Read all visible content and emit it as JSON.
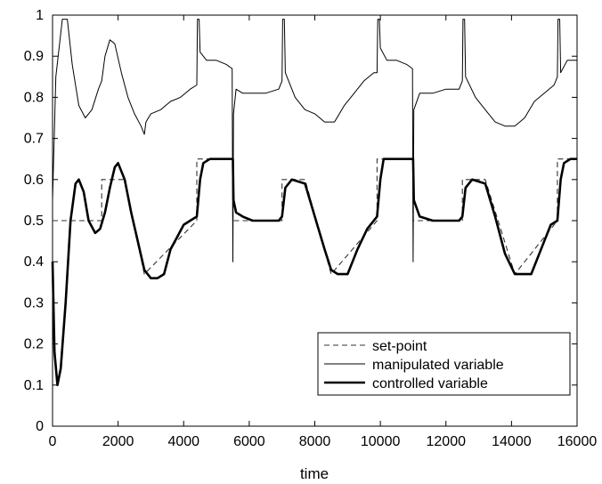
{
  "chart_data": {
    "type": "line",
    "title": "",
    "xlabel": "time",
    "ylabel": "",
    "xlim": [
      0,
      16000
    ],
    "ylim": [
      0,
      1
    ],
    "xticks": [
      0,
      2000,
      4000,
      6000,
      8000,
      10000,
      12000,
      14000,
      16000
    ],
    "yticks": [
      0,
      0.1,
      0.2,
      0.3,
      0.4,
      0.5,
      0.6,
      0.7,
      0.8,
      0.9,
      1
    ],
    "grid": false,
    "legend_position": "lower-right",
    "series": [
      {
        "name": "set-point",
        "style": "dashed",
        "x": [
          0,
          1500,
          1500,
          2200,
          2800,
          4400,
          4400,
          5500,
          5500,
          7000,
          7000,
          7700,
          8500,
          9900,
          9900,
          11000,
          11000,
          12500,
          12500,
          13200,
          14100,
          15400,
          15400,
          16000
        ],
        "y": [
          0.5,
          0.5,
          0.6,
          0.6,
          0.37,
          0.5,
          0.65,
          0.65,
          0.5,
          0.5,
          0.6,
          0.6,
          0.37,
          0.5,
          0.65,
          0.65,
          0.5,
          0.5,
          0.6,
          0.6,
          0.37,
          0.5,
          0.65,
          0.65
        ]
      },
      {
        "name": "manipulated variable",
        "style": "thin",
        "x": [
          0,
          100,
          300,
          450,
          600,
          800,
          1000,
          1200,
          1400,
          1500,
          1600,
          1750,
          1900,
          2100,
          2300,
          2500,
          2700,
          2800,
          2850,
          3000,
          3300,
          3600,
          3900,
          4200,
          4400,
          4420,
          4470,
          4500,
          4700,
          5000,
          5300,
          5480,
          5500,
          5520,
          5600,
          5800,
          6100,
          6500,
          6900,
          7000,
          7020,
          7070,
          7100,
          7400,
          7700,
          8000,
          8300,
          8600,
          8900,
          9200,
          9500,
          9800,
          9900,
          9920,
          9970,
          10000,
          10200,
          10500,
          10800,
          10980,
          11000,
          11020,
          11200,
          11600,
          12000,
          12400,
          12500,
          12520,
          12570,
          12600,
          12900,
          13200,
          13500,
          13800,
          14100,
          14400,
          14700,
          15000,
          15300,
          15400,
          15420,
          15470,
          15500,
          15700,
          16000
        ],
        "y": [
          0.55,
          0.85,
          0.99,
          0.99,
          0.88,
          0.78,
          0.75,
          0.77,
          0.82,
          0.84,
          0.9,
          0.94,
          0.93,
          0.86,
          0.8,
          0.76,
          0.73,
          0.71,
          0.74,
          0.76,
          0.77,
          0.79,
          0.8,
          0.82,
          0.83,
          0.99,
          0.99,
          0.91,
          0.89,
          0.89,
          0.88,
          0.87,
          0.4,
          0.76,
          0.82,
          0.81,
          0.81,
          0.81,
          0.82,
          0.84,
          0.99,
          0.99,
          0.86,
          0.8,
          0.77,
          0.76,
          0.74,
          0.74,
          0.78,
          0.81,
          0.84,
          0.86,
          0.86,
          0.99,
          0.99,
          0.92,
          0.89,
          0.89,
          0.88,
          0.87,
          0.4,
          0.77,
          0.81,
          0.81,
          0.82,
          0.82,
          0.84,
          0.99,
          0.99,
          0.85,
          0.8,
          0.77,
          0.74,
          0.73,
          0.73,
          0.75,
          0.79,
          0.81,
          0.83,
          0.85,
          0.99,
          0.99,
          0.86,
          0.89,
          0.89
        ]
      },
      {
        "name": "controlled variable",
        "style": "thick",
        "x": [
          0,
          60,
          150,
          250,
          400,
          550,
          700,
          800,
          950,
          1100,
          1300,
          1450,
          1600,
          1750,
          1900,
          2000,
          2200,
          2400,
          2600,
          2800,
          3000,
          3200,
          3400,
          3600,
          3800,
          4000,
          4200,
          4400,
          4500,
          4600,
          4800,
          5000,
          5300,
          5500,
          5520,
          5600,
          5800,
          6100,
          6500,
          6900,
          7000,
          7100,
          7300,
          7700,
          8000,
          8300,
          8500,
          8700,
          9000,
          9300,
          9600,
          9900,
          10000,
          10100,
          10300,
          10700,
          11000,
          11020,
          11200,
          11600,
          12000,
          12400,
          12500,
          12600,
          12800,
          13200,
          13500,
          13800,
          14100,
          14300,
          14600,
          14900,
          15200,
          15400,
          15500,
          15600,
          15800,
          16000
        ],
        "y": [
          0.4,
          0.18,
          0.1,
          0.14,
          0.3,
          0.5,
          0.59,
          0.6,
          0.57,
          0.5,
          0.47,
          0.48,
          0.52,
          0.58,
          0.63,
          0.64,
          0.6,
          0.52,
          0.45,
          0.38,
          0.36,
          0.36,
          0.37,
          0.43,
          0.46,
          0.49,
          0.5,
          0.51,
          0.6,
          0.64,
          0.65,
          0.65,
          0.65,
          0.65,
          0.55,
          0.52,
          0.51,
          0.5,
          0.5,
          0.5,
          0.51,
          0.58,
          0.6,
          0.59,
          0.51,
          0.43,
          0.38,
          0.37,
          0.37,
          0.43,
          0.48,
          0.51,
          0.6,
          0.65,
          0.65,
          0.65,
          0.65,
          0.55,
          0.51,
          0.5,
          0.5,
          0.5,
          0.51,
          0.58,
          0.6,
          0.59,
          0.51,
          0.42,
          0.37,
          0.37,
          0.37,
          0.43,
          0.49,
          0.5,
          0.6,
          0.64,
          0.65,
          0.65
        ]
      }
    ]
  }
}
